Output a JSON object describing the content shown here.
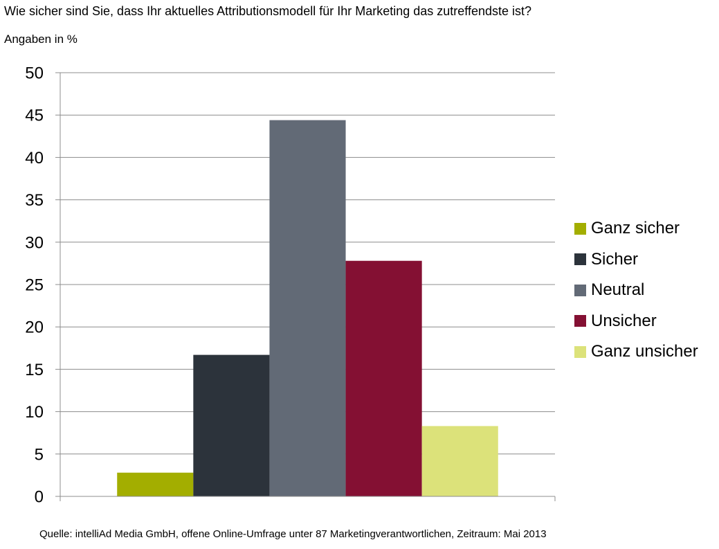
{
  "title": "Wie sicher sind Sie, dass Ihr aktuelles Attributionsmodell für Ihr Marketing das zutreffendste ist?",
  "subtitle": "Angaben in %",
  "source": "Quelle: intelliAd Media GmbH, offene Online-Umfrage unter 87 Marketingverantwortlichen, Zeitraum: Mai 2013",
  "chart_data": {
    "type": "bar",
    "categories": [
      ""
    ],
    "series": [
      {
        "name": "Ganz sicher",
        "values": [
          2.8
        ],
        "color": "#a3ae00"
      },
      {
        "name": "Sicher",
        "values": [
          16.7
        ],
        "color": "#2c333b"
      },
      {
        "name": "Neutral",
        "values": [
          44.4
        ],
        "color": "#626a76"
      },
      {
        "name": "Unsicher",
        "values": [
          27.8
        ],
        "color": "#841033"
      },
      {
        "name": "Ganz unsicher",
        "values": [
          8.3
        ],
        "color": "#dce27a"
      }
    ],
    "ylim": [
      0,
      50
    ],
    "yticks": [
      0,
      5,
      10,
      15,
      20,
      25,
      30,
      35,
      40,
      45,
      50
    ],
    "grid": true,
    "legend": "right"
  }
}
